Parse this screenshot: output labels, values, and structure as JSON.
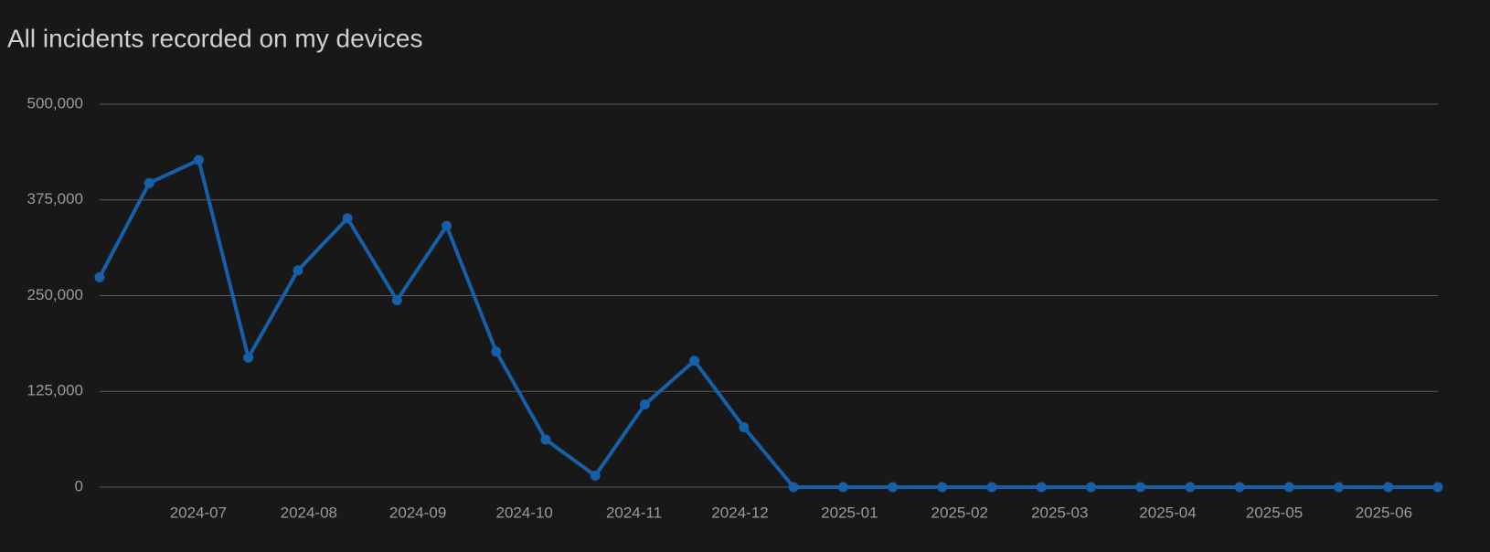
{
  "chart_data": {
    "type": "line",
    "title": "All incidents recorded on my devices",
    "x": [
      0,
      1,
      2,
      3,
      4,
      5,
      6,
      7,
      8,
      9,
      10,
      11,
      12,
      13,
      14,
      15,
      16,
      17,
      18,
      19,
      20,
      21,
      22,
      23,
      24,
      25,
      26,
      27
    ],
    "series": [
      {
        "color": "#1760a8",
        "values": [
          274000,
          397000,
          427000,
          169000,
          283000,
          351000,
          244000,
          341000,
          177000,
          62000,
          15000,
          108000,
          165000,
          78000,
          0,
          0,
          0,
          0,
          0,
          0,
          0,
          0,
          0,
          0,
          0,
          0,
          0,
          0
        ]
      }
    ],
    "xlim": [
      0,
      27
    ],
    "xticks": [
      {
        "value": 1.99,
        "label": "2024-07"
      },
      {
        "value": 4.22,
        "label": "2024-08"
      },
      {
        "value": 6.42,
        "label": "2024-09"
      },
      {
        "value": 8.57,
        "label": "2024-10"
      },
      {
        "value": 10.78,
        "label": "2024-11"
      },
      {
        "value": 12.92,
        "label": "2024-12"
      },
      {
        "value": 15.13,
        "label": "2025-01"
      },
      {
        "value": 17.35,
        "label": "2025-02"
      },
      {
        "value": 19.37,
        "label": "2025-03"
      },
      {
        "value": 21.55,
        "label": "2025-04"
      },
      {
        "value": 23.7,
        "label": "2025-05"
      },
      {
        "value": 25.91,
        "label": "2025-06"
      }
    ],
    "ylim": [
      0,
      500000
    ],
    "yticks": [
      0,
      {
        "value": 125000,
        "label": "125,000"
      },
      {
        "value": 250000,
        "label": "250,000"
      },
      {
        "value": 375000,
        "label": "375,000"
      },
      {
        "value": 500000,
        "label": "500,000"
      }
    ],
    "grid": true
  }
}
